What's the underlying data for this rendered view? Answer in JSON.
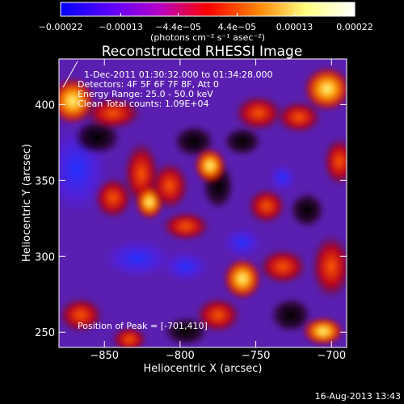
{
  "chart_data": {
    "type": "heatmap",
    "title": "Reconstructed RHESSI Image",
    "xlabel": "Heliocentric X (arcsec)",
    "ylabel": "Heliocentric Y (arcsec)",
    "xlim": [
      -880,
      -690
    ],
    "ylim": [
      240,
      430
    ],
    "x_ticks": [
      -850,
      -800,
      -750,
      -700
    ],
    "y_ticks": [
      250,
      300,
      350,
      400
    ],
    "x_tick_labels": [
      "−850",
      "−800",
      "−750",
      "−700"
    ],
    "y_tick_labels": [
      "250",
      "300",
      "350",
      "400"
    ],
    "colorbar": {
      "range": [
        -0.00022,
        0.00022
      ],
      "ticks": [
        -0.00022,
        -0.00013,
        -4.4e-05,
        4.4e-05,
        0.00013,
        0.00022
      ],
      "tick_labels": [
        "−0.00022",
        "−0.00013",
        "−4.4e−05",
        "4.4e−05",
        "0.00013",
        "0.00022"
      ],
      "unit_label": "(photons cm⁻² s⁻¹ asec⁻²)",
      "colors": [
        "#0000ff",
        "#5a00ff",
        "#b400c8",
        "#ff0000",
        "#ff8000",
        "#ffff80",
        "#ffffff"
      ]
    },
    "annotations": [
      "1-Dec-2011 01:30:32.000 to 01:34:28.000",
      "Detectors: 4F 5F 6F 7F 8F, Att 0",
      "Energy Range: 25.0 - 50.0 keV",
      "Clean   Total counts: 1.09E+04"
    ],
    "peak_label": "Position of Peak = [-701,410]",
    "peak": [
      -701,
      410
    ],
    "timestamp": "16-Aug-2013 13:43"
  }
}
